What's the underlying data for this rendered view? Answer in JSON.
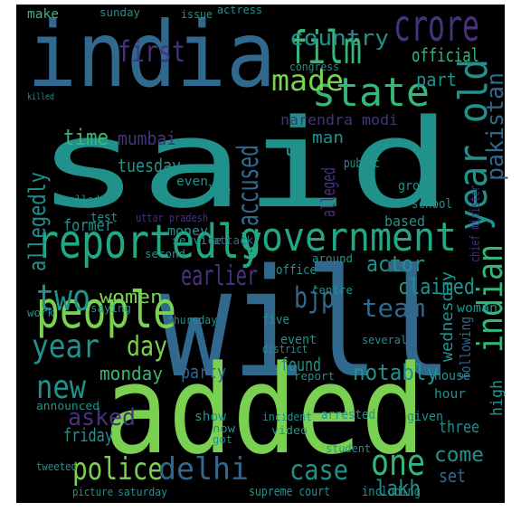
{
  "words": [
    "said",
    "will",
    "added",
    "india",
    "reportedly",
    "people",
    "government",
    "state",
    "film",
    "crore",
    "country",
    "made",
    "first",
    "year old",
    "pakistan",
    "accused",
    "allegedly",
    "two",
    "bjp",
    "earlier",
    "actor",
    "claimed",
    "women",
    "time",
    "mumbai",
    "tuesday",
    "narendra modi",
    "man",
    "us",
    "official",
    "part",
    "indian",
    "wednesday",
    "team",
    "notably",
    "year",
    "day",
    "new",
    "monday",
    "party",
    "found",
    "asked",
    "friday",
    "police",
    "delhi",
    "case",
    "one",
    "lakh",
    "come",
    "set",
    "high",
    "chief minister",
    "alleged",
    "following",
    "former",
    "make",
    "sunday",
    "issue",
    "actress",
    "killed",
    "congress",
    "public",
    "group",
    "school",
    "based",
    "even",
    "life",
    "money",
    "test",
    "called",
    "second",
    "uttar pradesh",
    "service",
    "attack",
    "saying",
    "work",
    "thursday",
    "event",
    "report",
    "district",
    "three",
    "including",
    "video",
    "student",
    "arrested",
    "incident",
    "announced",
    "tweeted",
    "picture",
    "saturday",
    "supreme court",
    "now",
    "show",
    "got",
    "given",
    "house",
    "hour",
    "woman",
    "centre",
    "office",
    "around",
    "several",
    "five"
  ]
}
